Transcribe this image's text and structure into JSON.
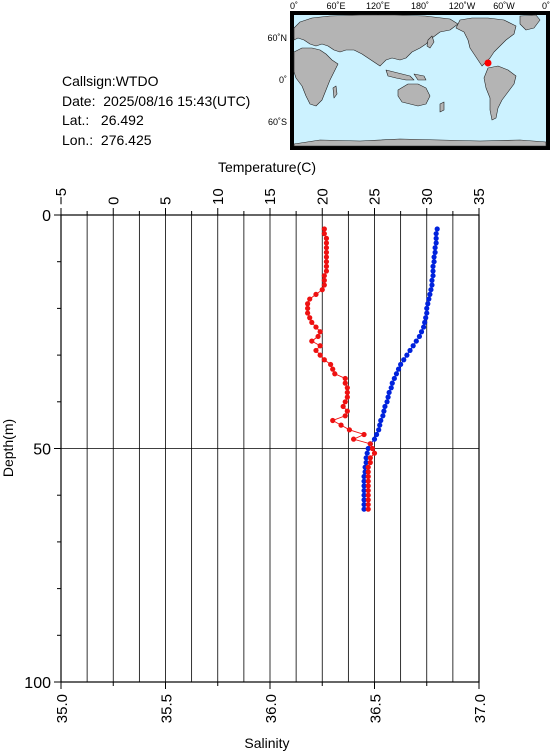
{
  "station": {
    "callsign_label": "Callsign:",
    "callsign": "WTDO",
    "date_label": "Date:",
    "date": "2025/08/16 15:43(UTC)",
    "lat_label": "Lat.:",
    "lat": "26.492",
    "lon_label": "Lon.:",
    "lon": "276.425"
  },
  "map": {
    "top_labels": [
      "0˚",
      "60˚E",
      "120˚E",
      "180˚",
      "120˚W",
      "60˚W",
      "0˚"
    ],
    "left_labels": [
      "60˚N",
      "0˚",
      "60˚S"
    ],
    "ocean_color": "#ccf2ff",
    "land_color": "#b4b4b4",
    "marker_color": "#ff0000"
  },
  "chart_data": {
    "type": "line",
    "top_axis": {
      "label": "Temperature(C)",
      "range": [
        -5,
        35
      ],
      "ticks": [
        "−5",
        "0",
        "5",
        "10",
        "15",
        "20",
        "25",
        "30",
        "35"
      ]
    },
    "bottom_axis": {
      "label": "Salinity",
      "range": [
        35.0,
        37.0
      ],
      "ticks": [
        "35.0",
        "35.5",
        "36.0",
        "36.5",
        "37.0"
      ]
    },
    "y_axis": {
      "label": "Depth(m)",
      "range": [
        0,
        100
      ],
      "reversed": true,
      "ticks": [
        "0",
        "50",
        "100"
      ]
    },
    "grid": true,
    "series": [
      {
        "color": "#0022dd",
        "axis": "temperature",
        "points": [
          [
            31.0,
            3
          ],
          [
            30.9,
            4
          ],
          [
            30.9,
            5
          ],
          [
            30.9,
            6
          ],
          [
            30.8,
            7
          ],
          [
            30.8,
            8
          ],
          [
            30.7,
            9
          ],
          [
            30.7,
            10
          ],
          [
            30.6,
            11
          ],
          [
            30.6,
            12
          ],
          [
            30.6,
            13
          ],
          [
            30.5,
            14
          ],
          [
            30.5,
            15
          ],
          [
            30.4,
            16
          ],
          [
            30.3,
            17
          ],
          [
            30.2,
            18
          ],
          [
            30.1,
            19
          ],
          [
            30.0,
            20
          ],
          [
            30.0,
            21
          ],
          [
            29.9,
            22
          ],
          [
            29.8,
            23
          ],
          [
            29.7,
            24
          ],
          [
            29.5,
            25
          ],
          [
            29.3,
            26
          ],
          [
            29.0,
            27
          ],
          [
            28.7,
            28
          ],
          [
            28.4,
            29
          ],
          [
            28.1,
            30
          ],
          [
            27.8,
            31
          ],
          [
            27.5,
            32
          ],
          [
            27.3,
            33
          ],
          [
            27.1,
            34
          ],
          [
            26.9,
            35
          ],
          [
            26.7,
            36
          ],
          [
            26.6,
            37
          ],
          [
            26.4,
            38
          ],
          [
            26.3,
            39
          ],
          [
            26.2,
            40
          ],
          [
            26.0,
            41
          ],
          [
            25.9,
            42
          ],
          [
            25.8,
            43
          ],
          [
            25.6,
            44
          ],
          [
            25.5,
            45
          ],
          [
            25.4,
            46
          ],
          [
            25.2,
            47
          ],
          [
            25.0,
            48
          ],
          [
            24.6,
            49
          ],
          [
            24.4,
            50
          ],
          [
            24.3,
            51
          ],
          [
            24.2,
            52
          ],
          [
            24.2,
            53
          ],
          [
            24.1,
            54
          ],
          [
            24.1,
            55
          ],
          [
            24.0,
            56
          ],
          [
            24.0,
            57
          ],
          [
            24.0,
            58
          ],
          [
            24.0,
            59
          ],
          [
            24.0,
            60
          ],
          [
            24.0,
            61
          ],
          [
            24.0,
            62
          ],
          [
            24.0,
            63
          ]
        ]
      },
      {
        "color": "#ee1111",
        "axis": "salinity",
        "points": [
          [
            36.26,
            3
          ],
          [
            36.26,
            4
          ],
          [
            36.27,
            5
          ],
          [
            36.27,
            6
          ],
          [
            36.27,
            7
          ],
          [
            36.27,
            8
          ],
          [
            36.27,
            9
          ],
          [
            36.27,
            10
          ],
          [
            36.27,
            11
          ],
          [
            36.27,
            12
          ],
          [
            36.26,
            13
          ],
          [
            36.26,
            14
          ],
          [
            36.26,
            15
          ],
          [
            36.25,
            16
          ],
          [
            36.22,
            17
          ],
          [
            36.19,
            18
          ],
          [
            36.18,
            19
          ],
          [
            36.18,
            20
          ],
          [
            36.18,
            21
          ],
          [
            36.19,
            22
          ],
          [
            36.2,
            23
          ],
          [
            36.22,
            24
          ],
          [
            36.24,
            25
          ],
          [
            36.23,
            26
          ],
          [
            36.2,
            27
          ],
          [
            36.24,
            28
          ],
          [
            36.22,
            29
          ],
          [
            36.24,
            30
          ],
          [
            36.26,
            31
          ],
          [
            36.29,
            32
          ],
          [
            36.3,
            33
          ],
          [
            36.31,
            34
          ],
          [
            36.36,
            35
          ],
          [
            36.36,
            36
          ],
          [
            36.37,
            37
          ],
          [
            36.37,
            38
          ],
          [
            36.37,
            39
          ],
          [
            36.36,
            40
          ],
          [
            36.35,
            41
          ],
          [
            36.37,
            42
          ],
          [
            36.36,
            43
          ],
          [
            36.3,
            44
          ],
          [
            36.34,
            45
          ],
          [
            36.38,
            46
          ],
          [
            36.45,
            47
          ],
          [
            36.4,
            48
          ],
          [
            36.48,
            49
          ],
          [
            36.49,
            50
          ],
          [
            36.5,
            51
          ],
          [
            36.48,
            52
          ],
          [
            36.48,
            53
          ],
          [
            36.47,
            54
          ],
          [
            36.47,
            55
          ],
          [
            36.47,
            56
          ],
          [
            36.47,
            57
          ],
          [
            36.47,
            58
          ],
          [
            36.47,
            59
          ],
          [
            36.47,
            60
          ],
          [
            36.47,
            61
          ],
          [
            36.47,
            62
          ],
          [
            36.47,
            63
          ]
        ]
      }
    ]
  }
}
